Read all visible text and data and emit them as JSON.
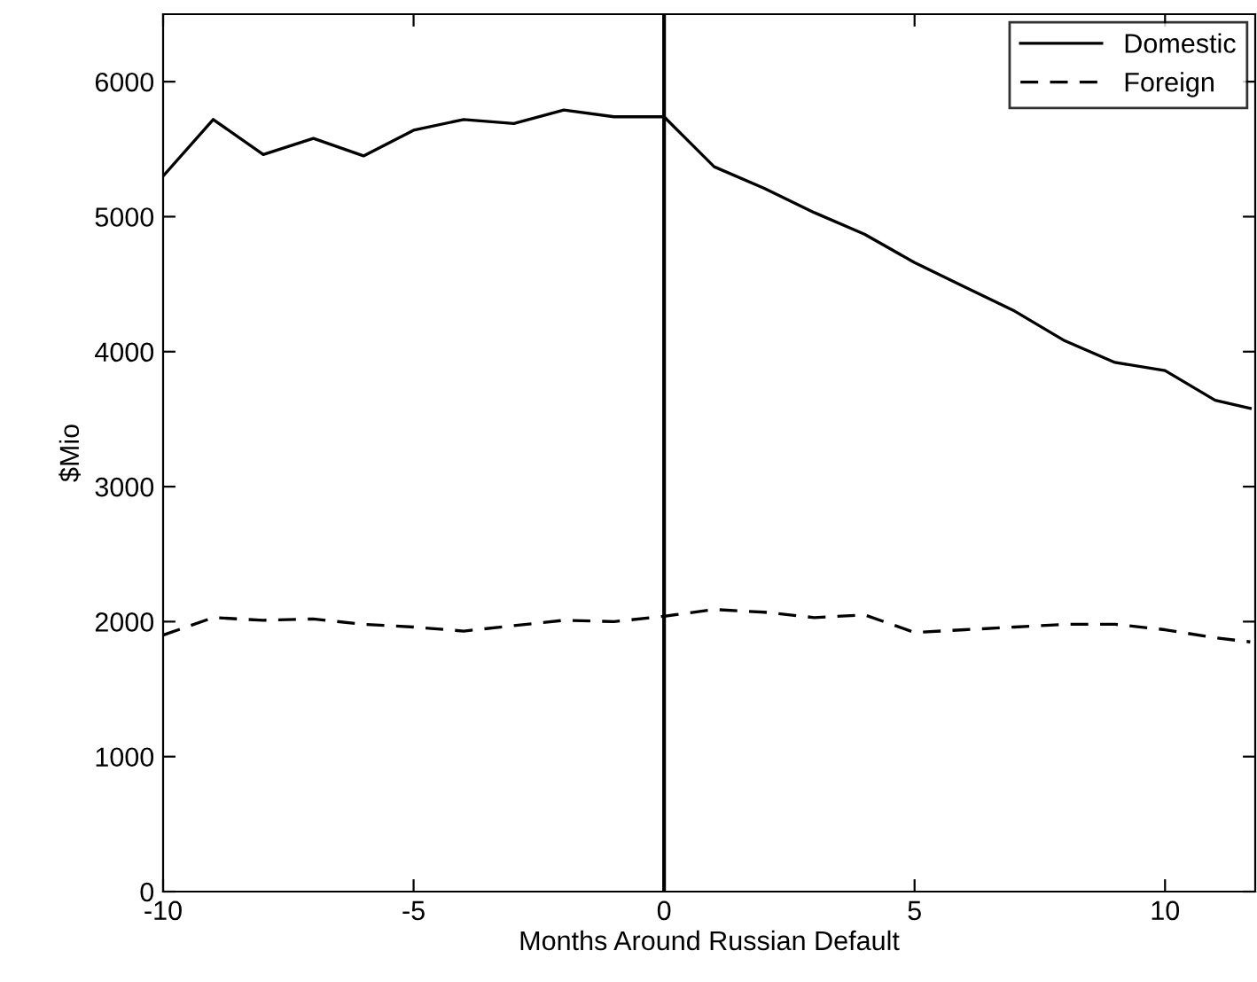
{
  "chart_data": {
    "type": "line",
    "xlabel": "Months Around Russian Default",
    "ylabel": "$Mio",
    "x": [
      -10,
      -9,
      -8,
      -7,
      -6,
      -5,
      -4,
      -3,
      -2,
      -1,
      0,
      1,
      2,
      3,
      4,
      5,
      6,
      7,
      8,
      9,
      10,
      11,
      11.7
    ],
    "series": [
      {
        "name": "Domestic",
        "color": "#000000",
        "line_style": "solid",
        "values": [
          5300,
          5720,
          5460,
          5580,
          5450,
          5640,
          5720,
          5690,
          5790,
          5740,
          5740,
          5370,
          5210,
          5030,
          4870,
          4660,
          4480,
          4300,
          4080,
          3920,
          3860,
          3640,
          3580
        ]
      },
      {
        "name": "Foreign",
        "color": "#000000",
        "line_style": "dashed",
        "values": [
          1900,
          2030,
          2010,
          2020,
          1980,
          1960,
          1930,
          1970,
          2010,
          2000,
          2040,
          2090,
          2070,
          2030,
          2050,
          1920,
          1940,
          1960,
          1980,
          1980,
          1940,
          1880,
          1850
        ]
      }
    ],
    "xlim": [
      -10,
      11.8
    ],
    "xticks": [
      -10,
      -5,
      0,
      5,
      10
    ],
    "ylim": [
      0,
      6500
    ],
    "yticks": [
      0,
      1000,
      2000,
      3000,
      4000,
      5000,
      6000
    ],
    "ref_lines": [
      {
        "axis": "x",
        "value": 0,
        "color": "#000000",
        "line_style": "solid"
      }
    ],
    "legend": "top right",
    "grid": false,
    "marker": "none"
  }
}
